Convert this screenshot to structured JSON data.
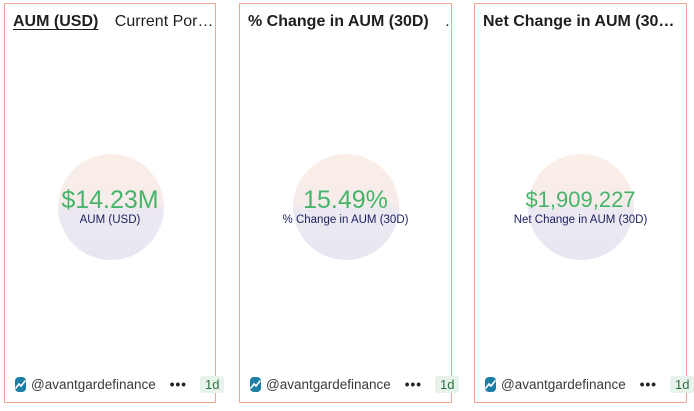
{
  "cards": [
    {
      "tabs": [
        "AUM (USD)",
        "Current Por…"
      ],
      "value": "$14.23M",
      "label": "AUM (USD)",
      "handle": "@avantgardefinance",
      "period": "1d"
    },
    {
      "tabs": [
        "% Change in AUM (30D)",
        "."
      ],
      "value": "15.49%",
      "label": "% Change in AUM (30D)",
      "handle": "@avantgardefinance",
      "period": "1d"
    },
    {
      "tabs": [
        "Net Change in AUM (30…"
      ],
      "value": "$1,909,227",
      "label": "Net Change in AUM (30D)",
      "handle": "@avantgardefinance",
      "period": "1d"
    }
  ],
  "menu_glyph": "•••",
  "colors": {
    "value_green": "#46b46b",
    "label_navy": "#1b1f5f",
    "card_border": "#f2a38f",
    "logo_blue": "#1d7fa6"
  },
  "icons": {
    "brand": "trend-line-logo-icon",
    "more": "more-dots-icon"
  }
}
